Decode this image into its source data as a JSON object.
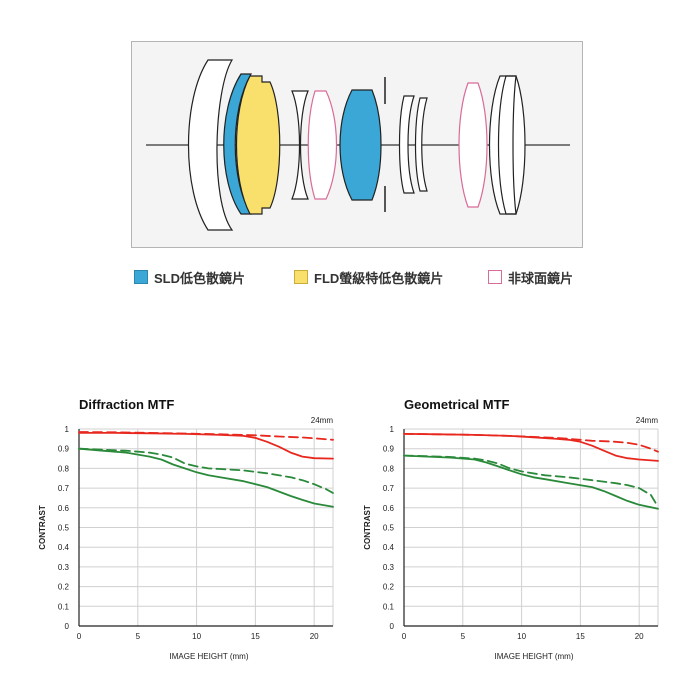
{
  "lens_diagram": {
    "legend": [
      {
        "label": "SLD低色散鏡片",
        "color": "#3aa7d6",
        "style": "fill"
      },
      {
        "label": "FLD螢級特低色散鏡片",
        "color": "#f9df6c",
        "style": "fill"
      },
      {
        "label": "非球面鏡片",
        "color": "#d86b97",
        "style": "outline"
      }
    ]
  },
  "chart_data": [
    {
      "type": "line",
      "title": "Diffraction MTF",
      "focal_length": "24mm",
      "xlabel": "IMAGE HEIGHT (mm)",
      "ylabel": "CONTRAST",
      "xlim": [
        0,
        21.6
      ],
      "ylim": [
        0,
        1
      ],
      "xticks": [
        "0",
        "5",
        "10",
        "15",
        "20"
      ],
      "yticks": [
        "0",
        "0.1",
        "0.2",
        "0.3",
        "0.4",
        "0.5",
        "0.6",
        "0.7",
        "0.8",
        "0.9",
        "1"
      ],
      "grid": true,
      "series": [
        {
          "color": "#e8281e",
          "dash": "solid",
          "x": [
            0,
            3,
            6,
            9,
            12,
            14,
            15,
            16,
            17,
            18,
            19,
            20,
            21.6
          ],
          "y": [
            0.98,
            0.98,
            0.978,
            0.975,
            0.97,
            0.965,
            0.955,
            0.935,
            0.91,
            0.88,
            0.86,
            0.852,
            0.85
          ]
        },
        {
          "color": "#e8281e",
          "dash": "dashed",
          "x": [
            0,
            3,
            6,
            9,
            12,
            15,
            17,
            19,
            20,
            21.6
          ],
          "y": [
            0.985,
            0.983,
            0.98,
            0.977,
            0.973,
            0.968,
            0.962,
            0.957,
            0.953,
            0.945
          ]
        },
        {
          "color": "#2a8a3a",
          "dash": "solid",
          "x": [
            0,
            2,
            4,
            6,
            7,
            8,
            9,
            10,
            11,
            12,
            14,
            16,
            18,
            19,
            20,
            21.6
          ],
          "y": [
            0.9,
            0.89,
            0.88,
            0.86,
            0.845,
            0.82,
            0.8,
            0.78,
            0.765,
            0.755,
            0.735,
            0.705,
            0.66,
            0.64,
            0.622,
            0.605
          ]
        },
        {
          "color": "#2a8a3a",
          "dash": "dashed",
          "x": [
            0,
            2,
            4,
            6,
            7,
            8,
            9,
            10,
            11,
            12,
            14,
            16,
            18,
            19,
            20,
            21,
            21.6
          ],
          "y": [
            0.9,
            0.895,
            0.89,
            0.88,
            0.87,
            0.855,
            0.825,
            0.81,
            0.8,
            0.797,
            0.79,
            0.775,
            0.755,
            0.74,
            0.72,
            0.695,
            0.675
          ]
        }
      ]
    },
    {
      "type": "line",
      "title": "Geometrical MTF",
      "focal_length": "24mm",
      "xlabel": "IMAGE HEIGHT (mm)",
      "ylabel": "CONTRAST",
      "xlim": [
        0,
        21.6
      ],
      "ylim": [
        0,
        1
      ],
      "xticks": [
        "0",
        "5",
        "10",
        "15",
        "20"
      ],
      "yticks": [
        "0",
        "0.1",
        "0.2",
        "0.3",
        "0.4",
        "0.5",
        "0.6",
        "0.7",
        "0.8",
        "0.9",
        "1"
      ],
      "grid": true,
      "series": [
        {
          "color": "#e8281e",
          "dash": "solid",
          "x": [
            0,
            3,
            6,
            9,
            11,
            13,
            14,
            15,
            16,
            17,
            18,
            19,
            20,
            21.6
          ],
          "y": [
            0.975,
            0.973,
            0.97,
            0.965,
            0.958,
            0.95,
            0.945,
            0.935,
            0.915,
            0.89,
            0.865,
            0.852,
            0.845,
            0.838
          ]
        },
        {
          "color": "#e8281e",
          "dash": "dashed",
          "x": [
            0,
            3,
            6,
            9,
            11,
            13,
            15,
            16,
            17,
            18,
            19,
            20,
            21,
            21.6
          ],
          "y": [
            0.975,
            0.973,
            0.97,
            0.965,
            0.96,
            0.955,
            0.945,
            0.94,
            0.938,
            0.935,
            0.93,
            0.92,
            0.9,
            0.885
          ]
        },
        {
          "color": "#2a8a3a",
          "dash": "solid",
          "x": [
            0,
            2,
            4,
            6,
            7,
            8,
            9,
            10,
            11,
            12,
            14,
            16,
            17,
            18,
            19,
            20,
            21.6
          ],
          "y": [
            0.865,
            0.86,
            0.855,
            0.845,
            0.83,
            0.81,
            0.79,
            0.77,
            0.755,
            0.745,
            0.725,
            0.705,
            0.685,
            0.66,
            0.635,
            0.615,
            0.595
          ]
        },
        {
          "color": "#2a8a3a",
          "dash": "dashed",
          "x": [
            0,
            2,
            4,
            6,
            7,
            8,
            9,
            10,
            12,
            14,
            16,
            18,
            19,
            20,
            21,
            21.6
          ],
          "y": [
            0.865,
            0.862,
            0.858,
            0.85,
            0.84,
            0.825,
            0.8,
            0.785,
            0.765,
            0.755,
            0.74,
            0.725,
            0.715,
            0.7,
            0.665,
            0.605
          ]
        }
      ]
    }
  ]
}
